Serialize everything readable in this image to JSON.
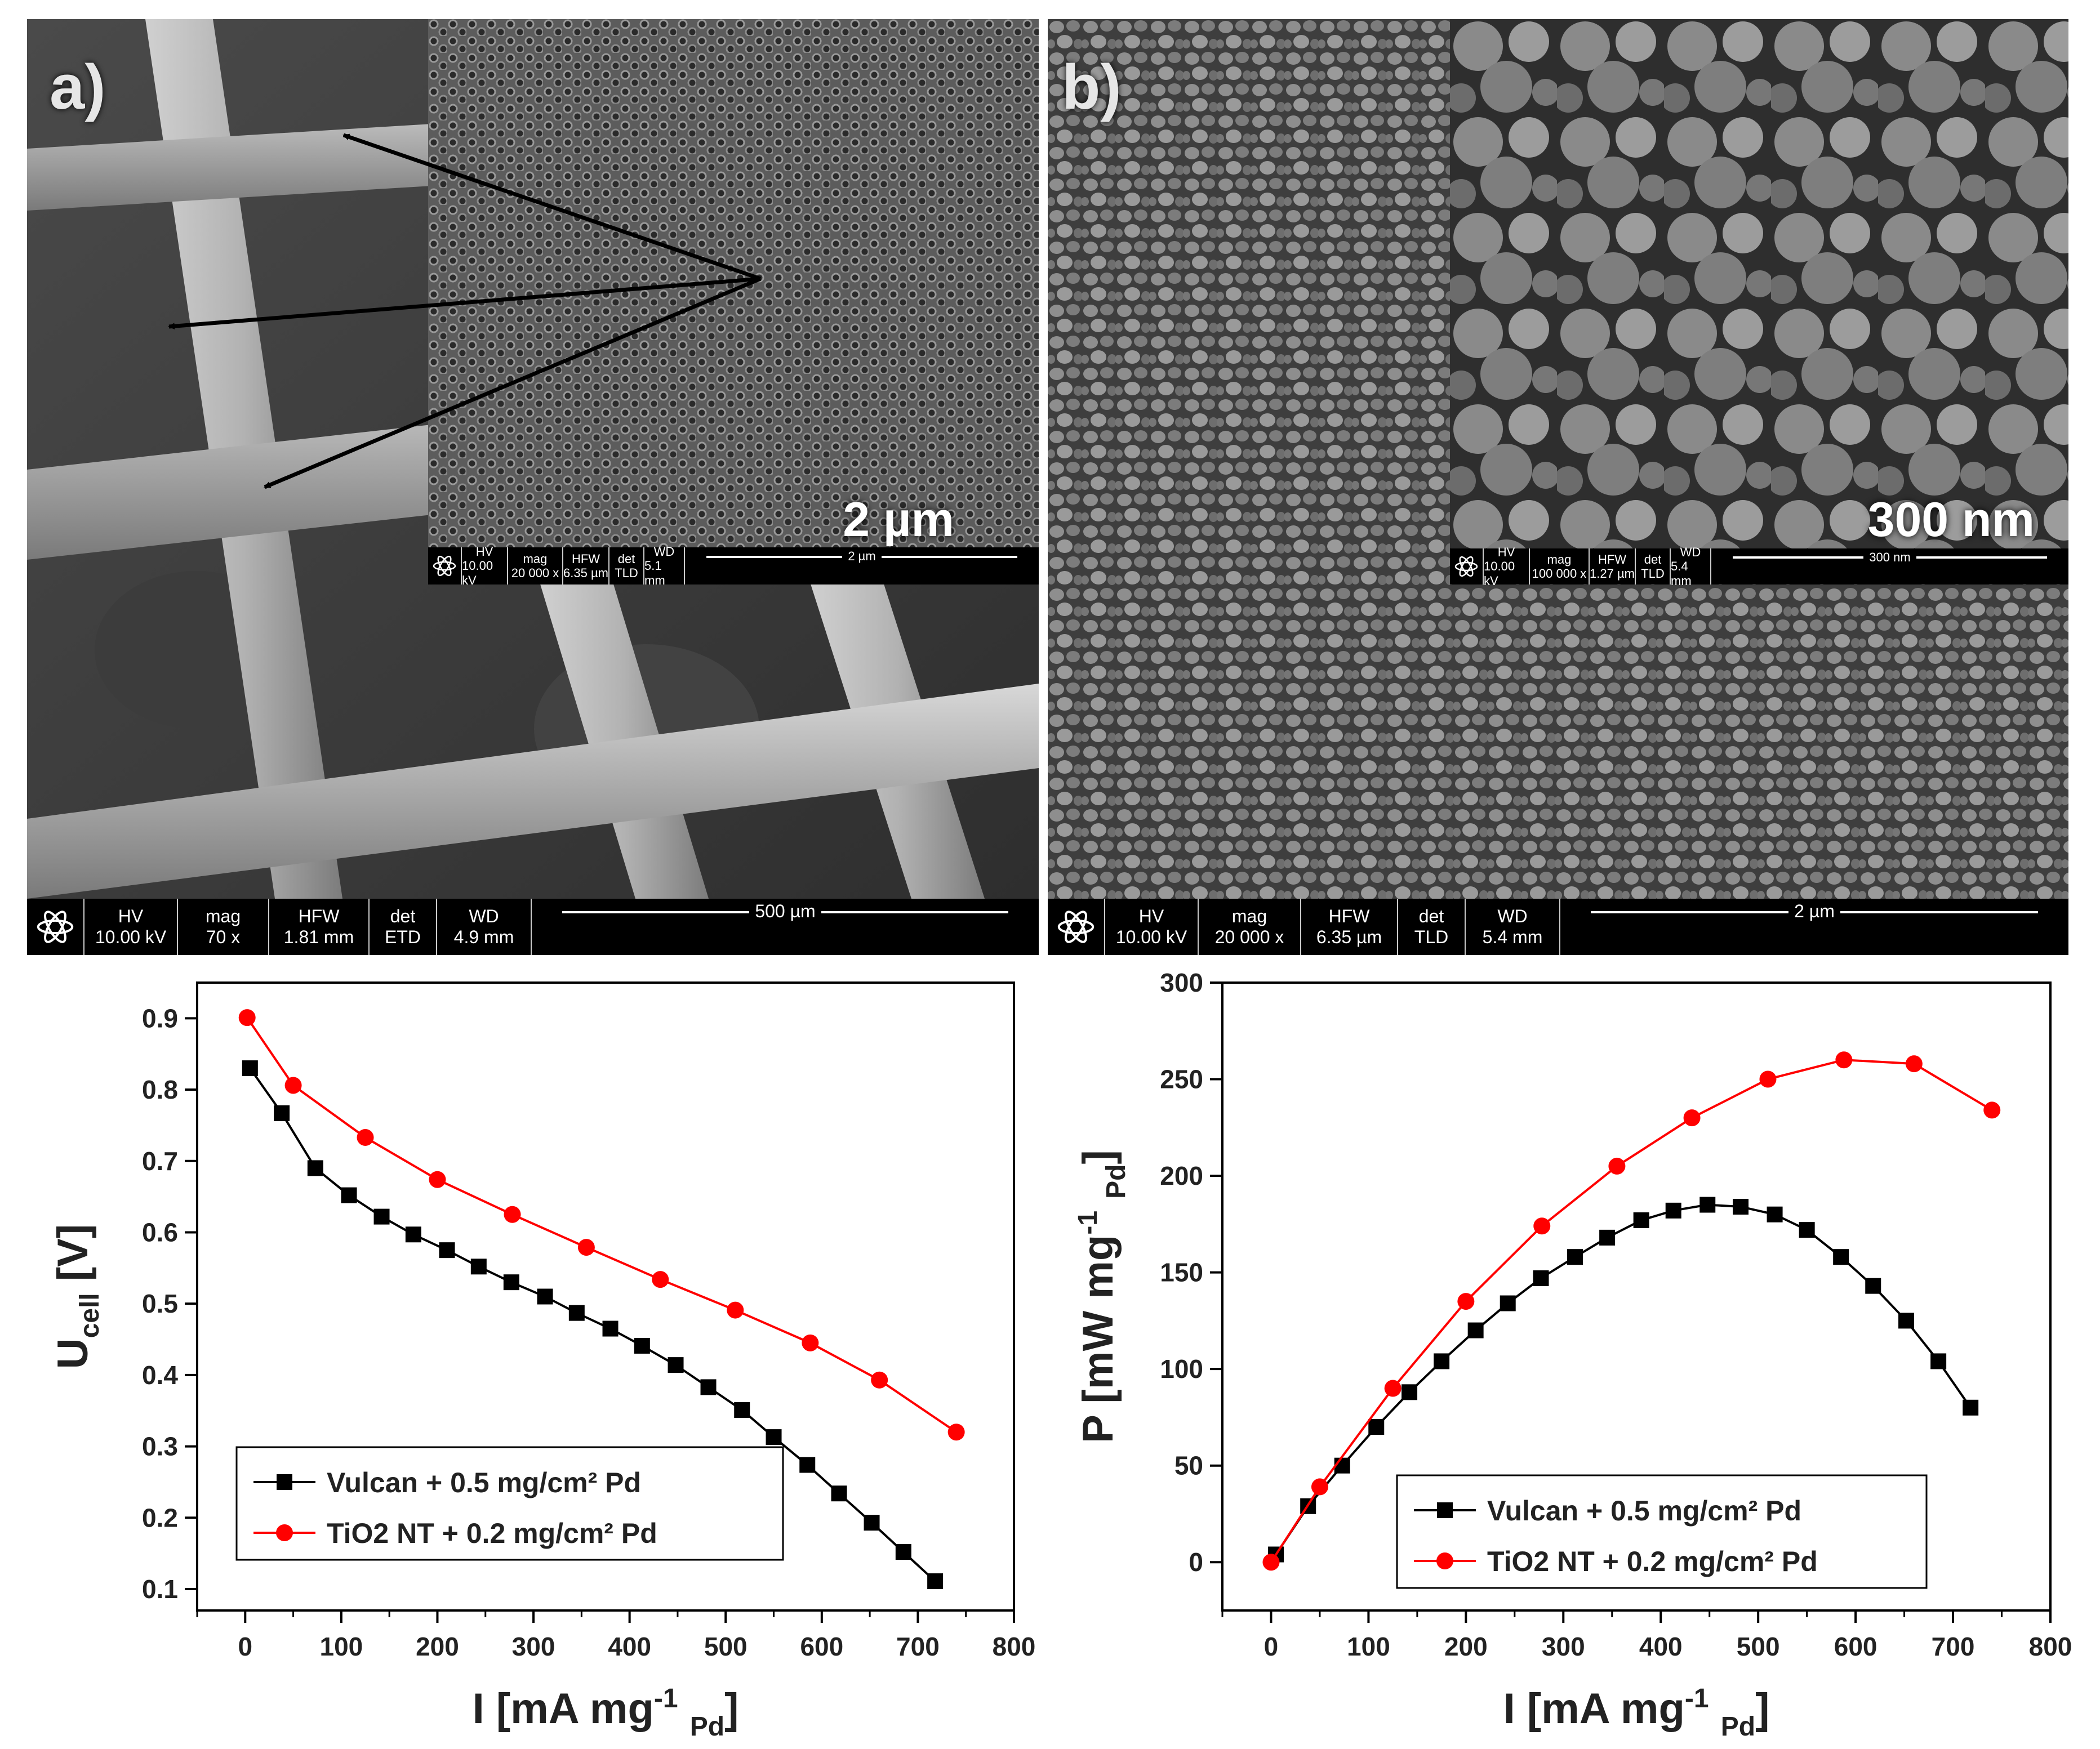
{
  "panel_a": {
    "letter": "a)",
    "inset_scale": "2 µm",
    "main_bar": {
      "hv_label": "HV",
      "hv": "10.00 kV",
      "mag_label": "mag",
      "mag": "70 x",
      "hfw_label": "HFW",
      "hfw": "1.81 mm",
      "det_label": "det",
      "det": "ETD",
      "wd_label": "WD",
      "wd": "4.9 mm",
      "scale": "500 µm"
    },
    "inset_bar": {
      "hv_label": "HV",
      "hv": "10.00 kV",
      "mag_label": "mag",
      "mag": "20 000 x",
      "hfw_label": "HFW",
      "hfw": "6.35 µm",
      "det_label": "det",
      "det": "TLD",
      "wd_label": "WD",
      "wd": "5.1 mm",
      "scale": "2 µm"
    }
  },
  "panel_b": {
    "letter": "b)",
    "inset_scale": "300 nm",
    "main_bar": {
      "hv_label": "HV",
      "hv": "10.00 kV",
      "mag_label": "mag",
      "mag": "20 000 x",
      "hfw_label": "HFW",
      "hfw": "6.35 µm",
      "det_label": "det",
      "det": "TLD",
      "wd_label": "WD",
      "wd": "5.4 mm",
      "scale": "2 µm"
    },
    "inset_bar": {
      "hv_label": "HV",
      "hv": "10.00 kV",
      "mag_label": "mag",
      "mag": "100 000 x",
      "hfw_label": "HFW",
      "hfw": "1.27 µm",
      "det_label": "det",
      "det": "TLD",
      "wd_label": "WD",
      "wd": "5.4 mm",
      "scale": "300 nm"
    }
  },
  "colors": {
    "vulcan": "#000000",
    "tio2": "#ff0000"
  },
  "chart_data": [
    {
      "type": "line",
      "title": "",
      "xlabel": "I [mA mg⁻¹ Pd]",
      "ylabel": "U cell [V]",
      "xlim": [
        -50,
        800
      ],
      "ylim": [
        0.07,
        0.95
      ],
      "xticks": [
        0,
        100,
        200,
        300,
        400,
        500,
        600,
        700,
        800
      ],
      "yticks": [
        0.1,
        0.2,
        0.3,
        0.4,
        0.5,
        0.6,
        0.7,
        0.8,
        0.9
      ],
      "legend_position": "bottom-left",
      "series": [
        {
          "name": "Vulcan + 0.5 mg/cm² Pd",
          "marker": "square",
          "x": [
            5,
            38,
            73,
            108,
            142,
            175,
            210,
            243,
            277,
            312,
            345,
            380,
            413,
            448,
            482,
            517,
            550,
            585,
            618,
            652,
            685,
            718
          ],
          "y": [
            0.83,
            0.767,
            0.69,
            0.652,
            0.622,
            0.597,
            0.575,
            0.552,
            0.53,
            0.51,
            0.487,
            0.465,
            0.441,
            0.414,
            0.383,
            0.351,
            0.313,
            0.274,
            0.234,
            0.193,
            0.152,
            0.111
          ]
        },
        {
          "name": "TiO2 NT + 0.2 mg/cm² Pd",
          "marker": "circle",
          "x": [
            2,
            50,
            125,
            200,
            278,
            355,
            432,
            510,
            588,
            660,
            740
          ],
          "y": [
            0.901,
            0.806,
            0.733,
            0.674,
            0.625,
            0.579,
            0.534,
            0.491,
            0.445,
            0.393,
            0.32
          ]
        }
      ]
    },
    {
      "type": "line",
      "title": "",
      "xlabel": "I [mA mg⁻¹ Pd]",
      "ylabel": "P [mW mg⁻¹ Pd]",
      "xlim": [
        -50,
        800
      ],
      "ylim": [
        -25,
        300
      ],
      "xticks": [
        0,
        100,
        200,
        300,
        400,
        500,
        600,
        700,
        800
      ],
      "yticks": [
        0,
        50,
        100,
        150,
        200,
        250,
        300
      ],
      "legend_position": "bottom-right",
      "series": [
        {
          "name": "Vulcan + 0.5 mg/cm² Pd",
          "marker": "square",
          "x": [
            5,
            38,
            73,
            108,
            142,
            175,
            210,
            243,
            277,
            312,
            345,
            380,
            413,
            448,
            482,
            517,
            550,
            585,
            618,
            652,
            685,
            718
          ],
          "y": [
            4,
            29,
            50,
            70,
            88,
            104,
            120,
            134,
            147,
            158,
            168,
            177,
            182,
            185,
            184,
            180,
            172,
            158,
            143,
            125,
            104,
            80
          ]
        },
        {
          "name": "TiO2 NT + 0.2 mg/cm² Pd",
          "marker": "circle",
          "x": [
            0,
            50,
            125,
            200,
            278,
            355,
            432,
            510,
            588,
            660,
            740
          ],
          "y": [
            0,
            39,
            90,
            135,
            174,
            205,
            230,
            250,
            260,
            258,
            234
          ]
        }
      ]
    }
  ]
}
